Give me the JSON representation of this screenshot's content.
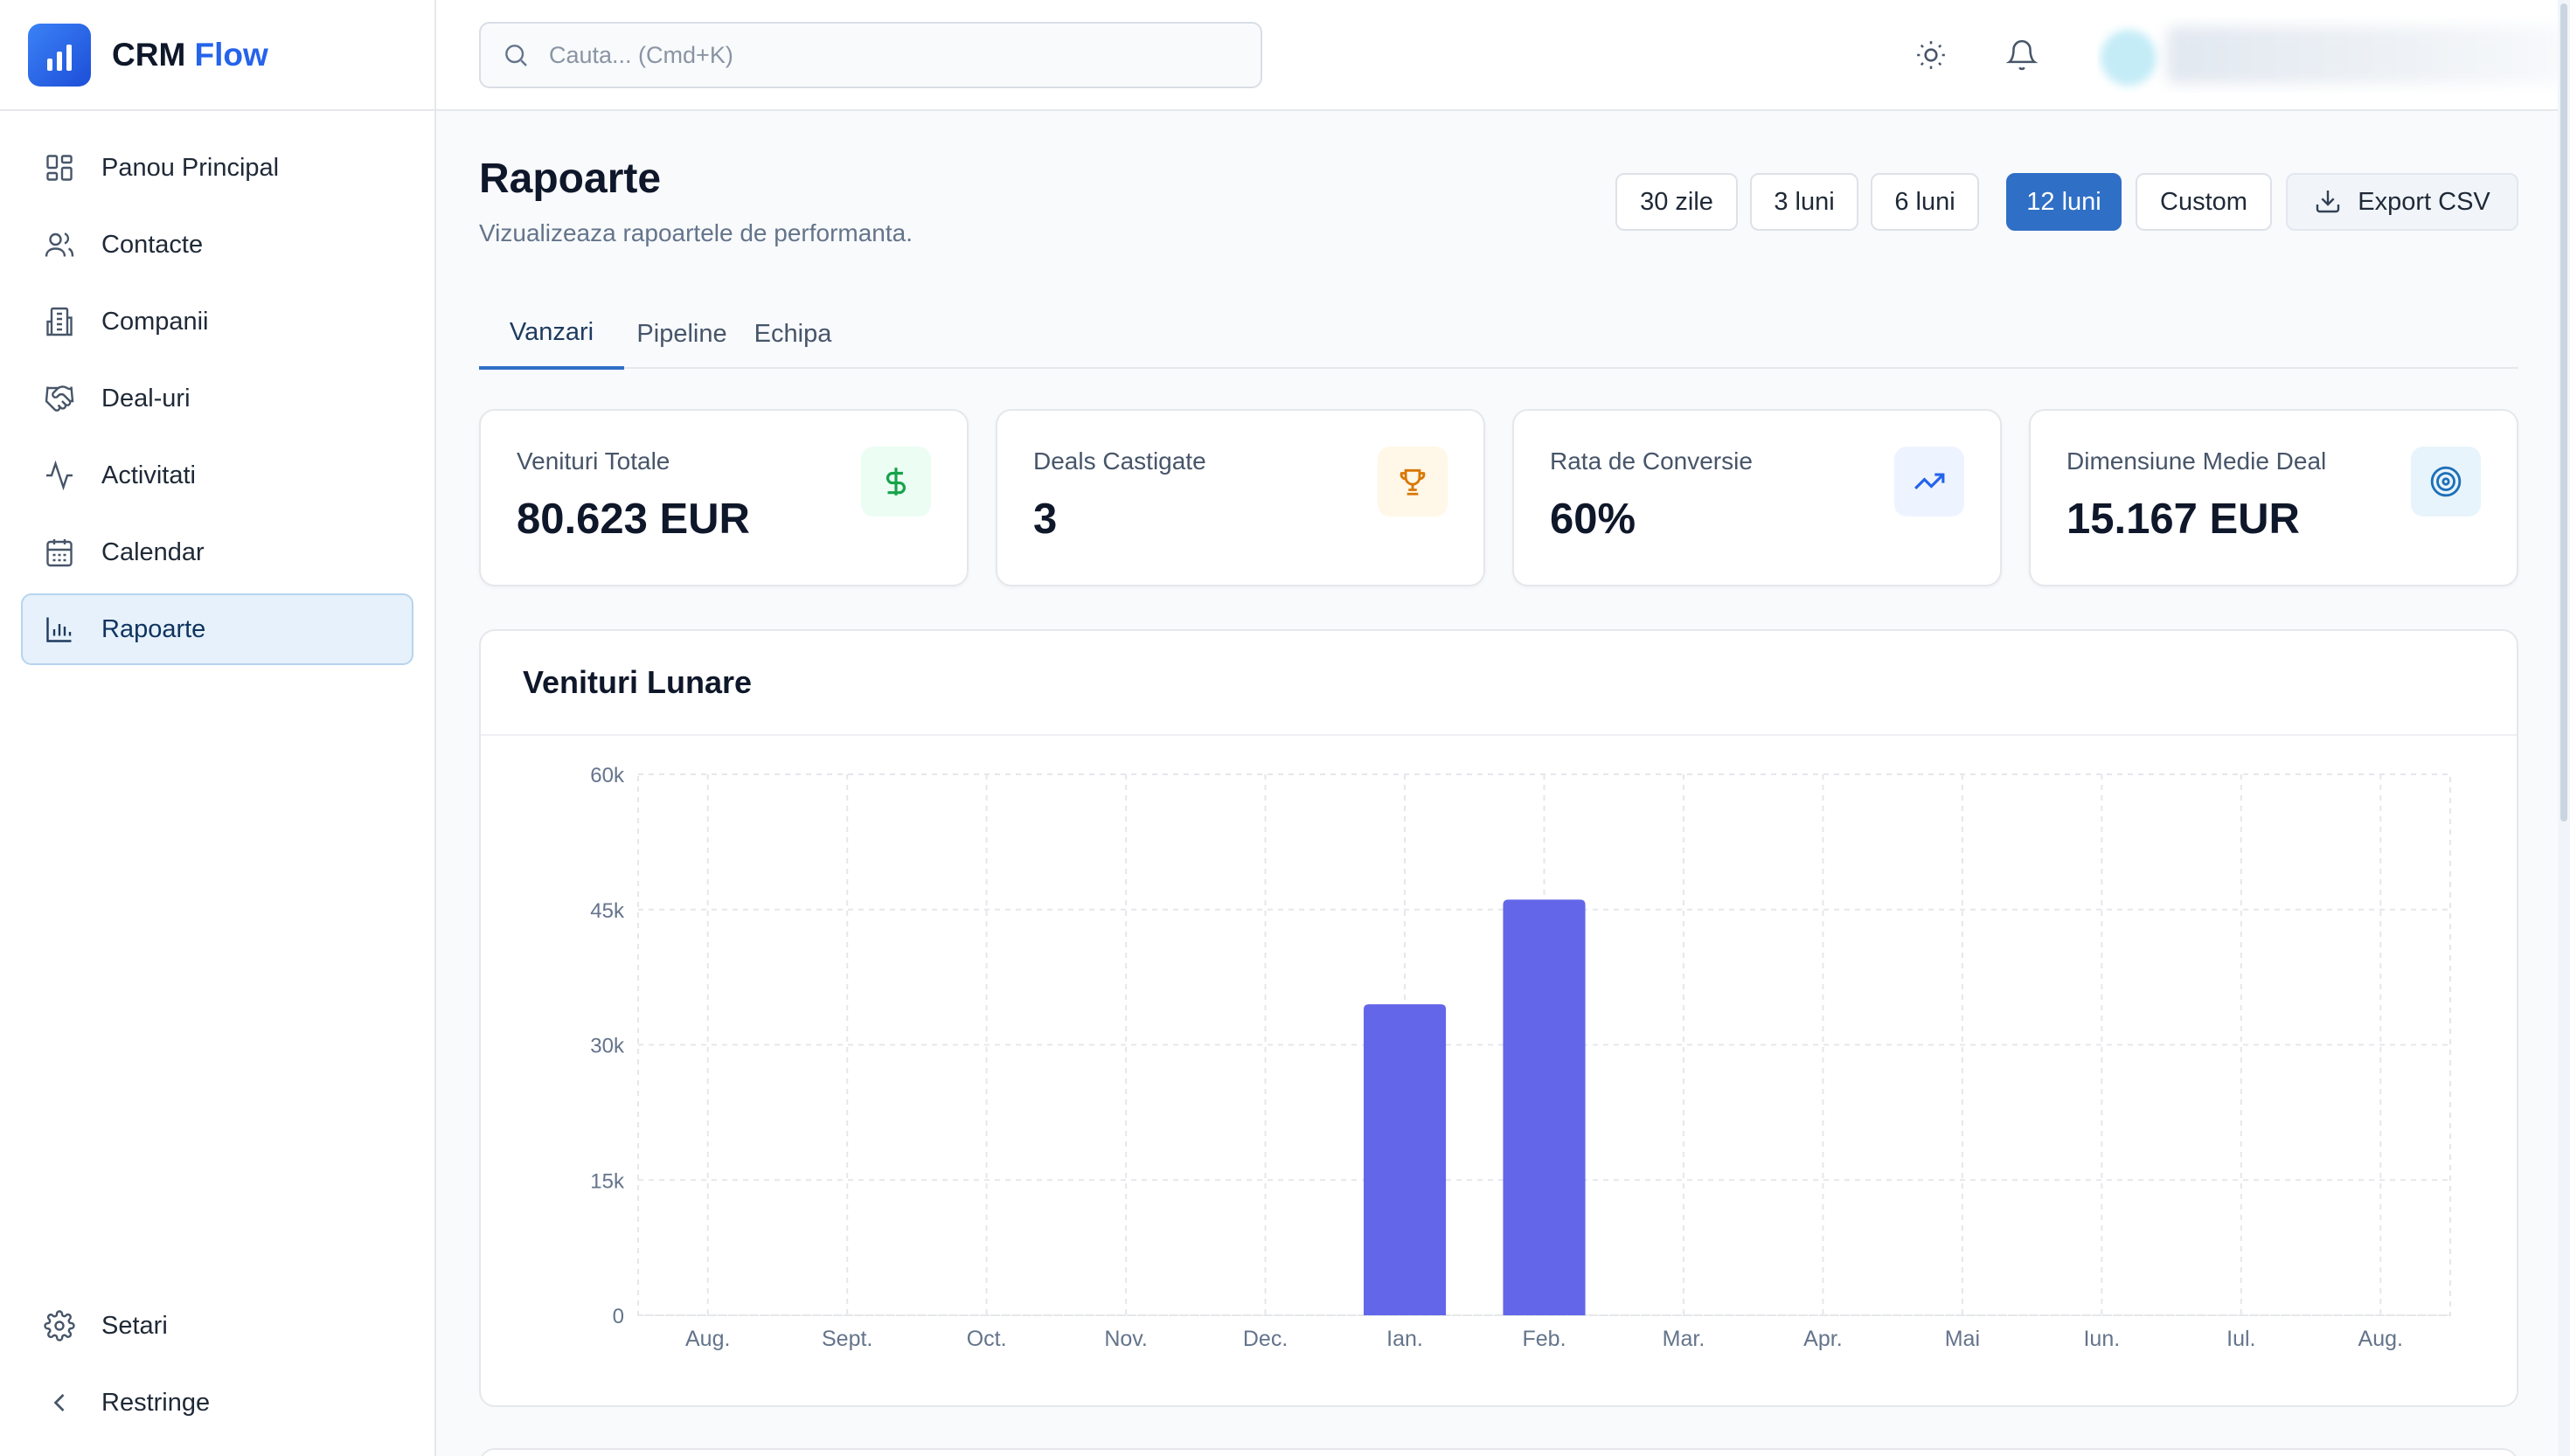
{
  "brand": {
    "name_main": "CRM",
    "name_accent": "Flow"
  },
  "sidebar": {
    "items": [
      {
        "label": "Panou Principal",
        "icon": "dashboard-icon"
      },
      {
        "label": "Contacte",
        "icon": "users-icon"
      },
      {
        "label": "Companii",
        "icon": "building-icon"
      },
      {
        "label": "Deal-uri",
        "icon": "handshake-icon"
      },
      {
        "label": "Activitati",
        "icon": "activity-icon"
      },
      {
        "label": "Calendar",
        "icon": "calendar-icon"
      },
      {
        "label": "Rapoarte",
        "icon": "bar-chart-icon",
        "active": true
      }
    ],
    "bottom": [
      {
        "label": "Setari",
        "icon": "gear-icon"
      },
      {
        "label": "Restringe",
        "icon": "chevron-left-icon"
      }
    ]
  },
  "topbar": {
    "search_placeholder": "Cauta... (Cmd+K)",
    "icons": [
      "sun-icon",
      "bell-icon"
    ]
  },
  "page": {
    "title": "Rapoarte",
    "subtitle": "Vizualizeaza rapoartele de performanta."
  },
  "ranges": [
    "30 zile",
    "3 luni",
    "6 luni",
    "12 luni",
    "Custom"
  ],
  "active_range": "12 luni",
  "export_label": "Export CSV",
  "tabs": [
    "Vanzari",
    "Pipeline",
    "Echipa"
  ],
  "active_tab": "Vanzari",
  "stats": [
    {
      "label": "Venituri Totale",
      "value": "80.623 EUR",
      "icon": "dollar-icon",
      "color": "#16a34a",
      "bg": "#ecfdf3"
    },
    {
      "label": "Deals Castigate",
      "value": "3",
      "icon": "trophy-icon",
      "color": "#d97706",
      "bg": "#fff7e8"
    },
    {
      "label": "Rata de Conversie",
      "value": "60%",
      "icon": "trending-up-icon",
      "color": "#2563eb",
      "bg": "#eef4ff"
    },
    {
      "label": "Dimensiune Medie Deal",
      "value": "15.167 EUR",
      "icon": "target-icon",
      "color": "#1d6fb8",
      "bg": "#e8f4fb"
    }
  ],
  "chart_title": "Venituri Lunare",
  "chart_data": {
    "type": "bar",
    "title": "Venituri Lunare",
    "categories": [
      "Aug.",
      "Sept.",
      "Oct.",
      "Nov.",
      "Dec.",
      "Ian.",
      "Feb.",
      "Mar.",
      "Apr.",
      "Mai",
      "Iun.",
      "Iul.",
      "Aug."
    ],
    "values": [
      0,
      0,
      0,
      0,
      0,
      34500,
      46100,
      0,
      0,
      0,
      0,
      0,
      0
    ],
    "ylim": [
      0,
      60000
    ],
    "yticks": [
      0,
      15000,
      30000,
      45000,
      60000
    ],
    "ytick_labels": [
      "0",
      "15k",
      "30k",
      "45k",
      "60k"
    ],
    "grid": true,
    "bar_color": "#6366e8"
  }
}
